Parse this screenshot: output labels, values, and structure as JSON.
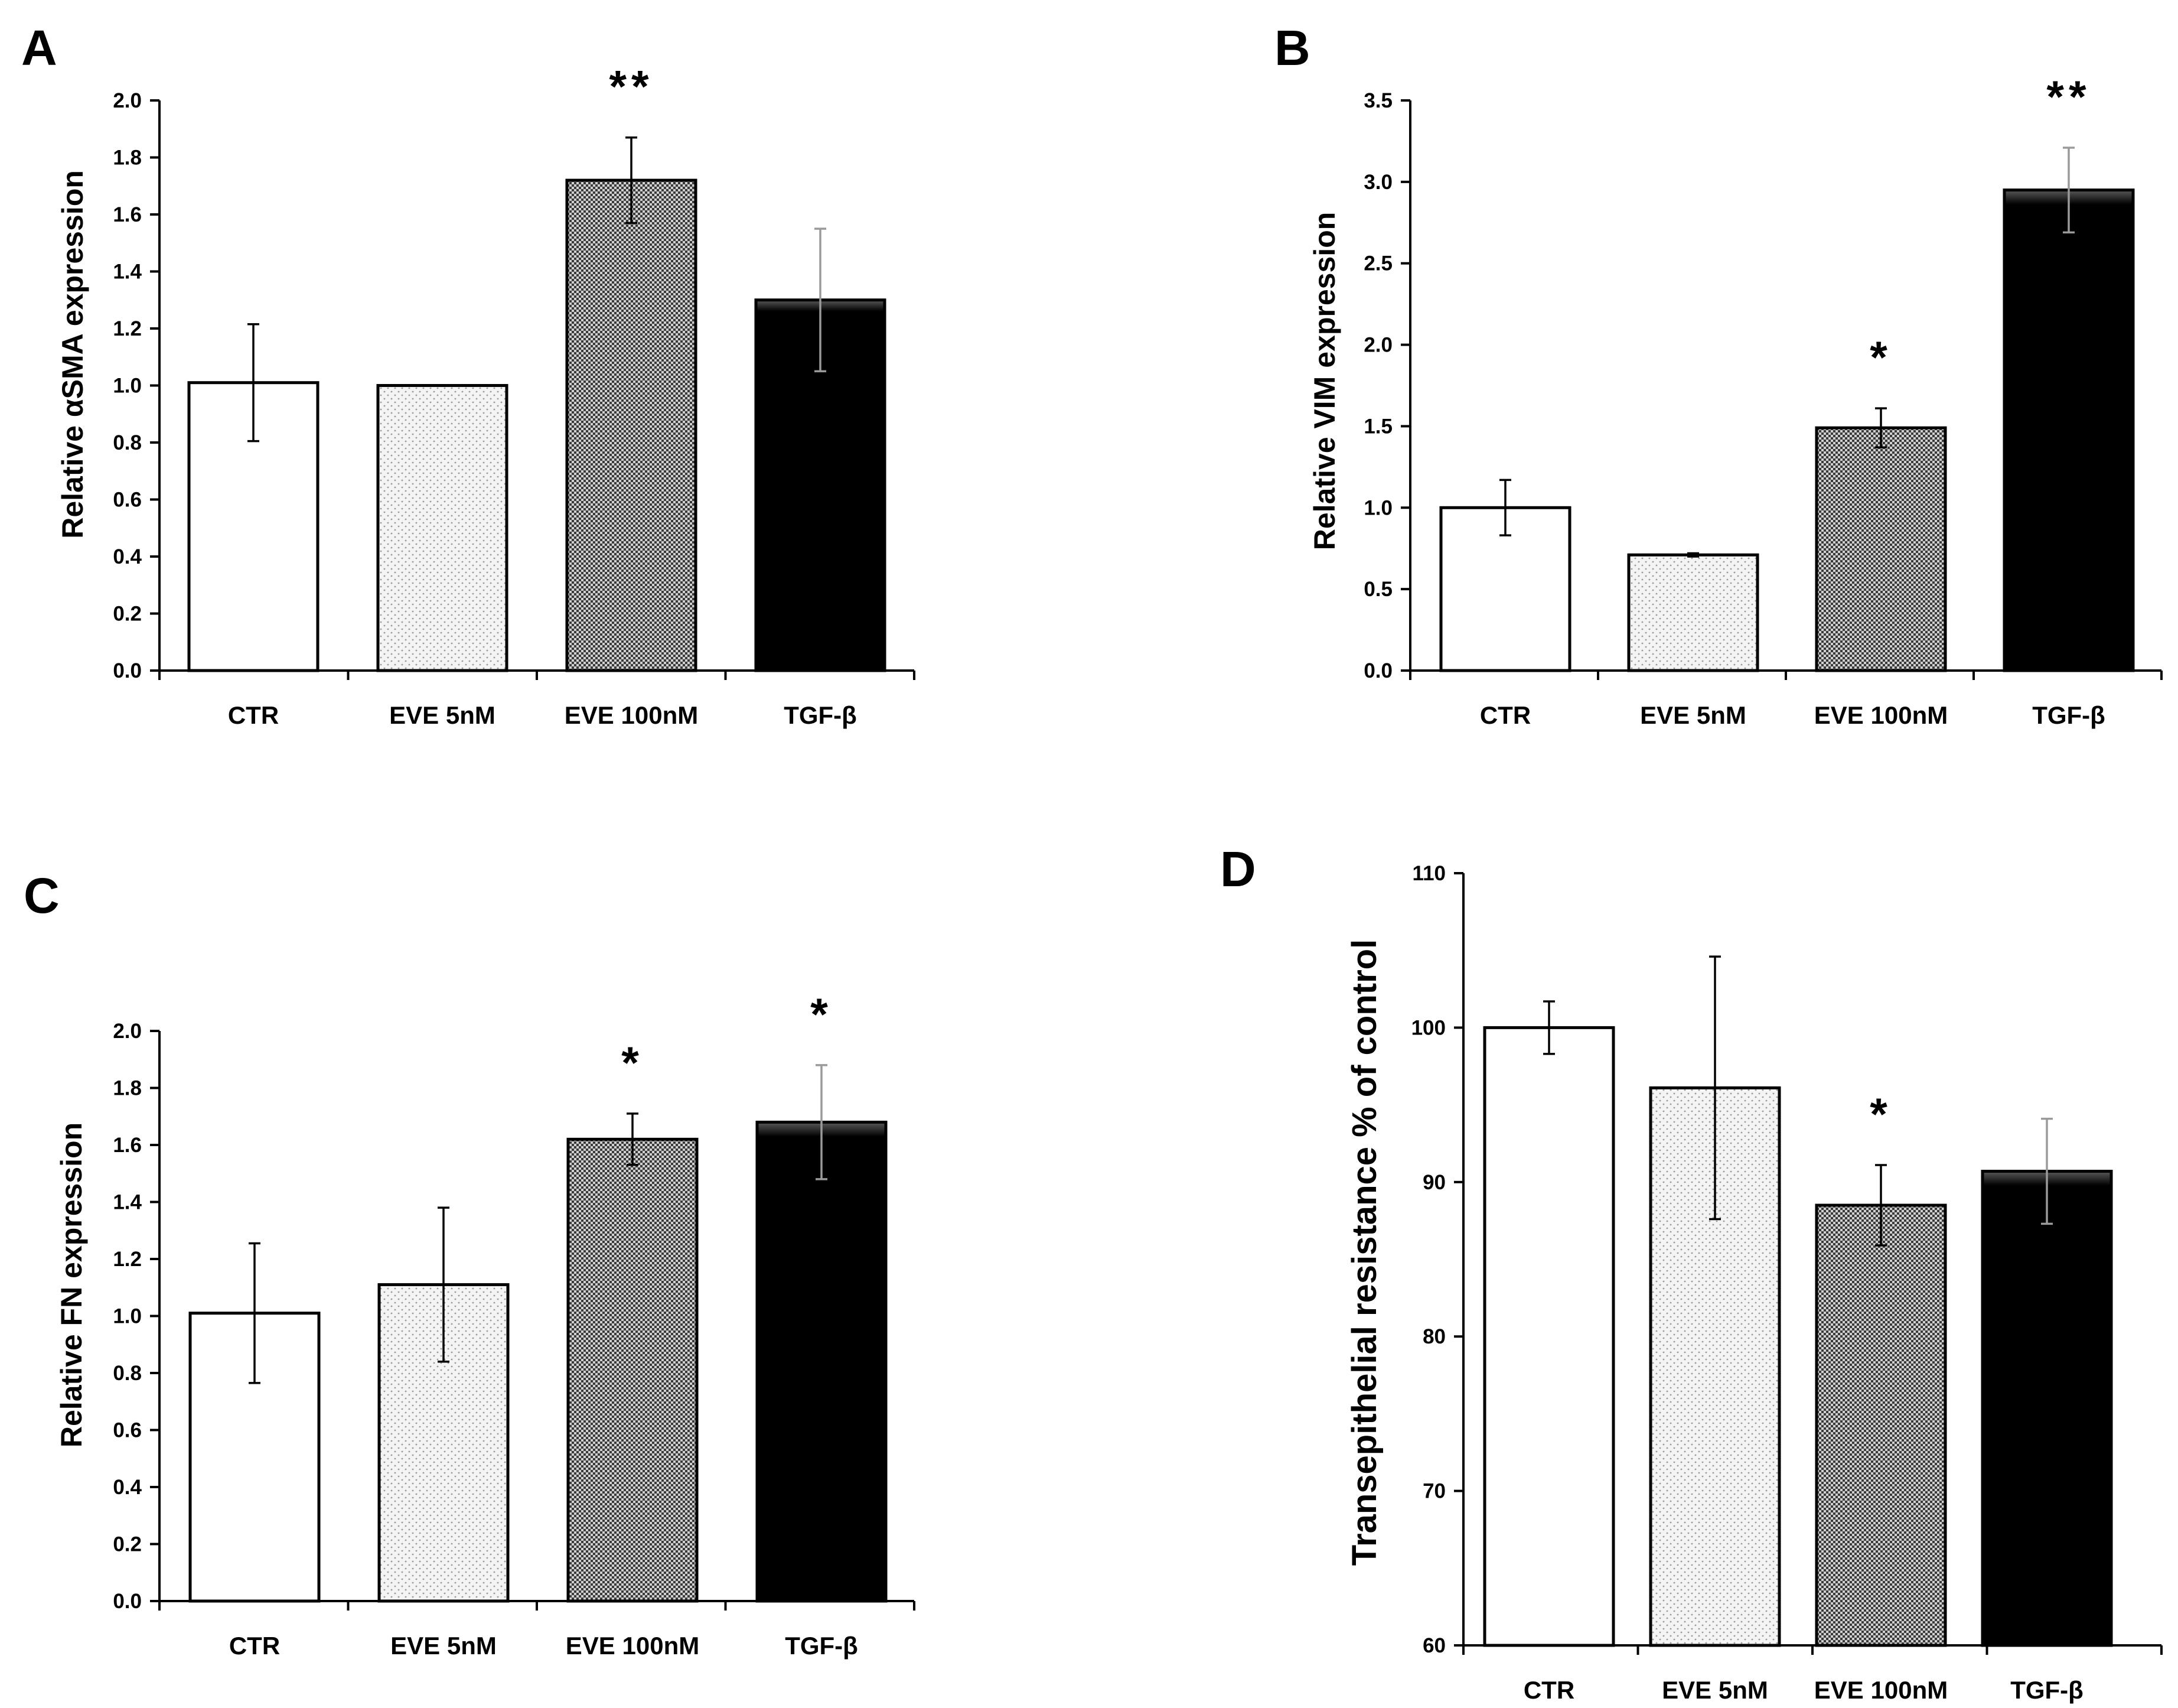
{
  "chart_data": [
    {
      "id": "A",
      "panel_label": "A",
      "type": "bar",
      "categories": [
        "CTR",
        "EVE 5nM",
        "EVE 100nM",
        "TGF-β"
      ],
      "values": [
        1.01,
        1.0,
        1.72,
        1.3
      ],
      "errors": [
        0.205,
        0.0,
        0.15,
        0.25
      ],
      "significance": [
        "",
        "",
        "**",
        ""
      ],
      "ylabel": "Relative αSMA expression",
      "ylim": [
        0,
        2.0
      ],
      "ytick_step": 0.2,
      "tick_decimals": 1,
      "patterns": [
        "white",
        "light-dots",
        "checker",
        "black"
      ]
    },
    {
      "id": "B",
      "panel_label": "B",
      "type": "bar",
      "categories": [
        "CTR",
        "EVE 5nM",
        "EVE 100nM",
        "TGF-β"
      ],
      "values": [
        1.0,
        0.71,
        1.49,
        2.95
      ],
      "errors": [
        0.17,
        0.01,
        0.12,
        0.26
      ],
      "significance": [
        "",
        "",
        "*",
        "**"
      ],
      "ylabel": "Relative VIM expression",
      "ylim": [
        0,
        3.5
      ],
      "ytick_step": 0.5,
      "tick_decimals": 1,
      "patterns": [
        "white",
        "light-dots",
        "checker",
        "black"
      ]
    },
    {
      "id": "C",
      "panel_label": "C",
      "type": "bar",
      "categories": [
        "CTR",
        "EVE 5nM",
        "EVE 100nM",
        "TGF-β"
      ],
      "values": [
        1.01,
        1.11,
        1.62,
        1.68
      ],
      "errors": [
        0.245,
        0.27,
        0.09,
        0.2
      ],
      "significance": [
        "",
        "",
        "*",
        "*"
      ],
      "ylabel": "Relative FN expression",
      "ylim": [
        0,
        2.0
      ],
      "ytick_step": 0.2,
      "tick_decimals": 1,
      "patterns": [
        "white",
        "light-dots",
        "checker",
        "black"
      ]
    },
    {
      "id": "D",
      "panel_label": "D",
      "type": "bar",
      "categories": [
        "CTR",
        "EVE 5nM",
        "EVE 100nM",
        "TGF-β"
      ],
      "values": [
        100.0,
        96.1,
        88.5,
        90.7
      ],
      "errors": [
        1.7,
        8.5,
        2.6,
        3.4
      ],
      "significance": [
        "",
        "",
        "*",
        ""
      ],
      "ylabel": "Transepithelial resistance % of control",
      "ylim": [
        60,
        110
      ],
      "ytick_step": 10,
      "tick_decimals": 0,
      "patterns": [
        "white",
        "light-dots",
        "checker",
        "black"
      ]
    }
  ],
  "colors": {
    "axis": "#000000",
    "bar_outline": "#000000",
    "bar_white": "#ffffff",
    "bar_black": "#000000",
    "checker_dark": "#3a3a3a",
    "checker_light": "#cfcfcf",
    "dots_bg": "#f4f4f4",
    "dots_fg": "#9a9a9a"
  }
}
